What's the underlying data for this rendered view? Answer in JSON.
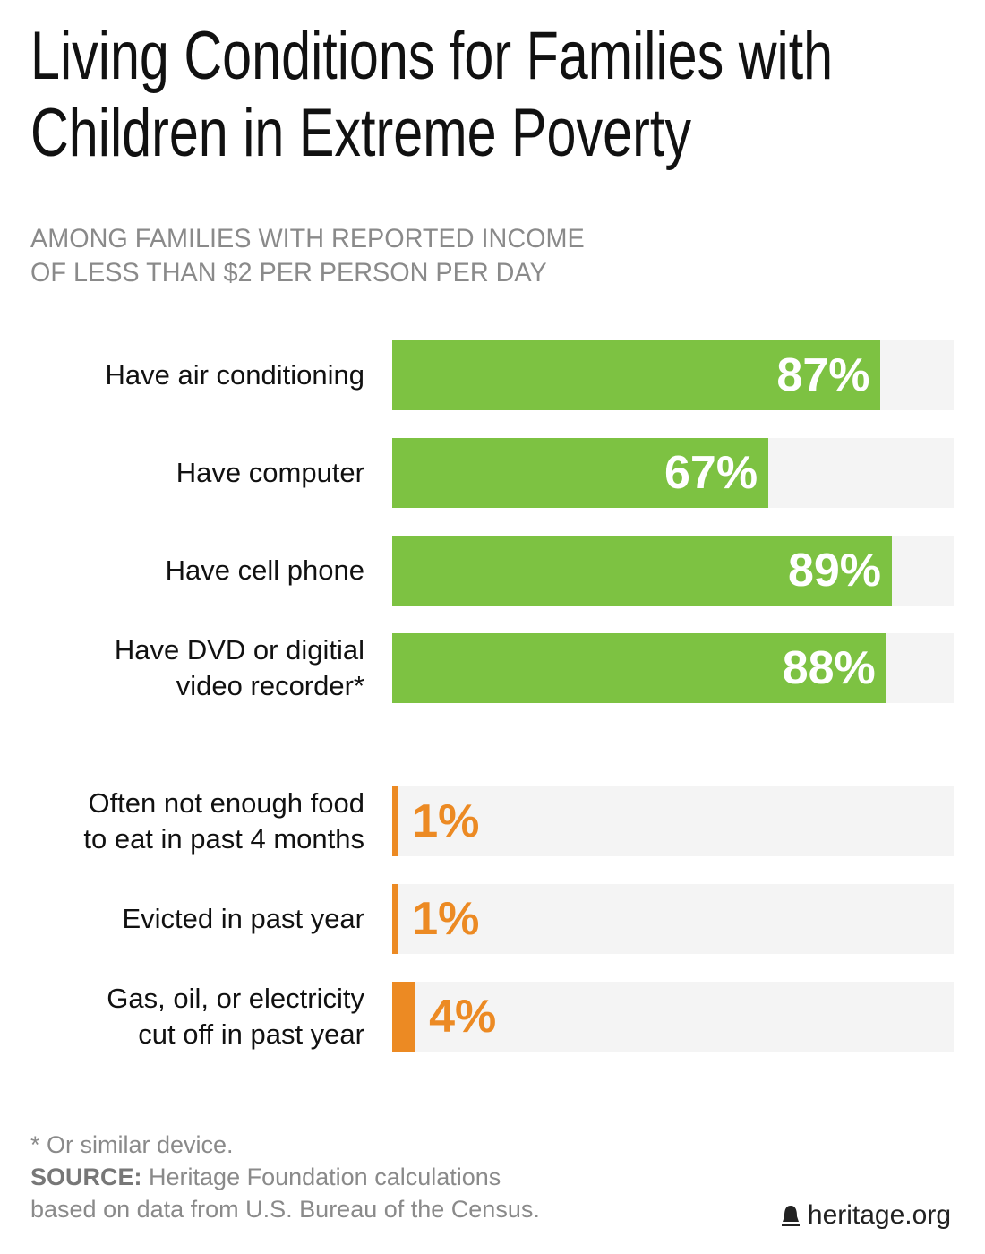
{
  "chart_data": {
    "type": "bar",
    "title": "Living Conditions for Families with\nChildren in Extreme Poverty",
    "subtitle": "AMONG FAMILIES WITH REPORTED INCOME\nOF LESS THAN $2 PER PERSON PER DAY",
    "categories": [
      "Have air conditioning",
      "Have computer",
      "Have cell phone",
      "Have DVD or digitial\nvideo recorder*",
      "Often not enough food\nto eat in past 4 months",
      "Evicted in past year",
      "Gas, oil, or electricity\ncut off in past year"
    ],
    "values": [
      87,
      67,
      89,
      88,
      1,
      1,
      4
    ],
    "value_labels": [
      "87%",
      "67%",
      "89%",
      "88%",
      "1%",
      "1%",
      "4%"
    ],
    "colors": [
      "#7dc242",
      "#7dc242",
      "#7dc242",
      "#7dc242",
      "#ec8a23",
      "#ec8a23",
      "#ec8a23"
    ],
    "xlim": [
      0,
      100
    ],
    "note": "* Or similar device.",
    "source_label": "SOURCE:",
    "source_text": "Heritage Foundation calculations\nbased on data from U.S. Bureau of the Census.",
    "brand": "heritage.org"
  }
}
